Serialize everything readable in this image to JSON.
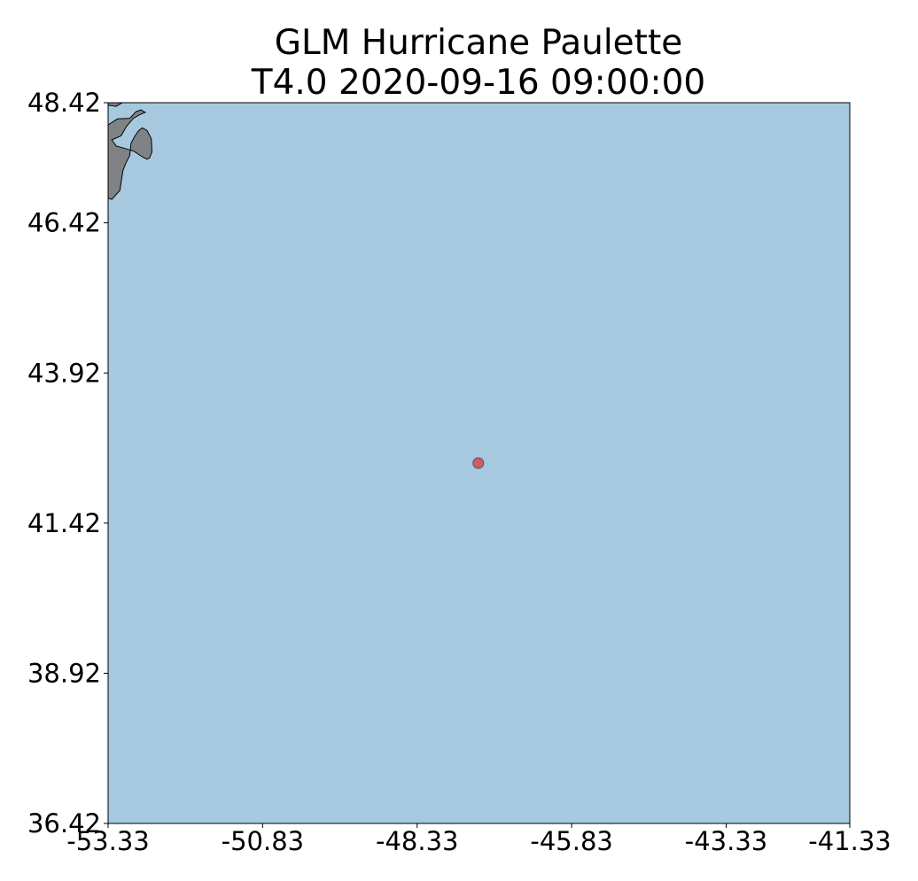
{
  "chart_data": {
    "type": "scatter",
    "title_line1": "GLM Hurricane Paulette",
    "title_line2": "T4.0 2020-09-16 09:00:00",
    "xlabel": "",
    "ylabel": "",
    "xlim": [
      -53.33,
      -41.33
    ],
    "ylim": [
      36.42,
      48.42
    ],
    "x_ticks": [
      "-53.33",
      "-50.83",
      "-48.33",
      "-45.83",
      "-43.33",
      "-41.33"
    ],
    "x_tick_values": [
      -53.33,
      -50.83,
      -48.33,
      -45.83,
      -43.33,
      -41.33
    ],
    "y_ticks": [
      "48.42",
      "46.42",
      "43.92",
      "41.42",
      "38.92",
      "36.42"
    ],
    "y_tick_values": [
      48.42,
      46.42,
      43.92,
      41.42,
      38.92,
      36.42
    ],
    "grid": false,
    "points": [
      {
        "x": -47.34,
        "y": 42.42
      }
    ],
    "point_color": "#cd5c68",
    "ocean_color": "#a6c9e0",
    "land_color": "#808386",
    "land_polygons": [
      [
        [
          -53.33,
          48.42
        ],
        [
          -53.1,
          48.42
        ],
        [
          -53.2,
          48.36
        ],
        [
          -53.33,
          48.38
        ]
      ],
      [
        [
          -53.33,
          48.05
        ],
        [
          -53.18,
          48.15
        ],
        [
          -52.98,
          48.16
        ],
        [
          -52.88,
          48.27
        ],
        [
          -52.8,
          48.3
        ],
        [
          -52.73,
          48.26
        ],
        [
          -52.82,
          48.22
        ],
        [
          -52.92,
          48.16
        ],
        [
          -53.03,
          48.03
        ],
        [
          -53.12,
          47.87
        ],
        [
          -53.27,
          47.8
        ],
        [
          -53.2,
          47.7
        ],
        [
          -53.03,
          47.65
        ],
        [
          -52.91,
          47.61
        ],
        [
          -52.78,
          47.52
        ],
        [
          -52.7,
          47.48
        ],
        [
          -52.66,
          47.5
        ],
        [
          -52.62,
          47.6
        ],
        [
          -52.63,
          47.82
        ],
        [
          -52.7,
          47.96
        ],
        [
          -52.78,
          48.0
        ],
        [
          -52.84,
          47.95
        ],
        [
          -52.9,
          47.86
        ],
        [
          -52.96,
          47.74
        ],
        [
          -52.98,
          47.54
        ],
        [
          -53.04,
          47.42
        ],
        [
          -53.09,
          47.29
        ],
        [
          -53.14,
          46.96
        ],
        [
          -53.27,
          46.81
        ],
        [
          -53.41,
          46.86
        ],
        [
          -53.33,
          46.95
        ]
      ]
    ]
  }
}
